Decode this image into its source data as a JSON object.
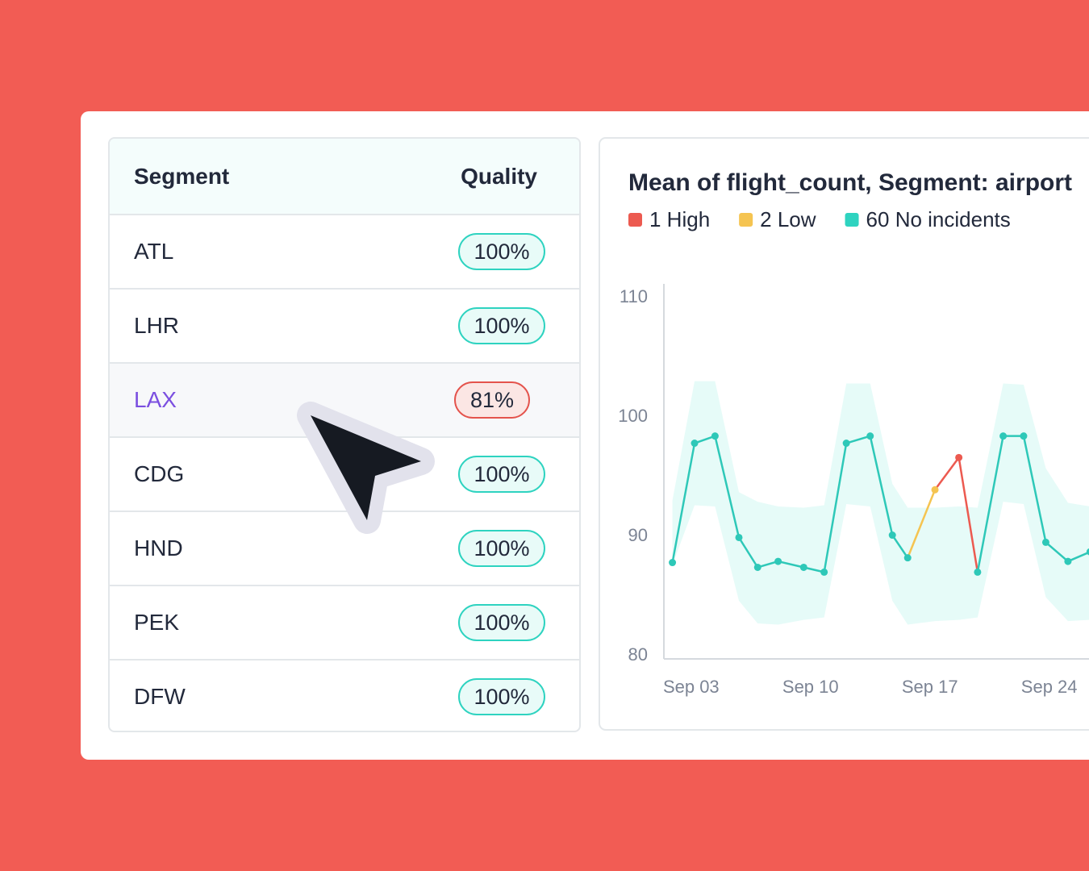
{
  "table": {
    "headers": [
      "Segment",
      "Quality"
    ],
    "rows": [
      [
        "ATL",
        "100%"
      ],
      [
        "LHR",
        "100%"
      ],
      [
        "LAX",
        "81%"
      ],
      [
        "CDG",
        "100%"
      ],
      [
        "HND",
        "100%"
      ],
      [
        "PEK",
        "100%"
      ],
      [
        "DFW",
        "100%"
      ]
    ],
    "selected_row": 2
  },
  "chart_data": {
    "type": "line",
    "title": "Mean of flight_count, Segment: airport",
    "legend": [
      {
        "label": "1 High",
        "color": "#ec5a50"
      },
      {
        "label": "2 Low",
        "color": "#f5c451"
      },
      {
        "label": "60 No incidents",
        "color": "#2ed3c0"
      }
    ],
    "x": [
      1.9,
      3.2,
      4.4,
      5.8,
      6.9,
      8.1,
      9.6,
      10.8,
      12.1,
      13.5,
      14.8,
      15.7,
      17.3,
      18.7,
      19.8,
      21.3,
      22.5,
      23.8,
      25.1,
      26.4
    ],
    "series": [
      {
        "color": "#2ec8b8",
        "values": [
          87.8,
          97.8,
          98.4,
          89.9,
          87.4,
          87.9,
          87.4,
          87.0,
          97.8,
          98.4,
          90.1,
          88.2,
          93.9,
          96.6,
          87.0,
          98.4,
          98.4,
          89.5,
          87.9,
          88.7
        ],
        "point_colors": [
          "#2ec8b8",
          "#2ec8b8",
          "#2ec8b8",
          "#2ec8b8",
          "#2ec8b8",
          "#2ec8b8",
          "#2ec8b8",
          "#2ec8b8",
          "#2ec8b8",
          "#2ec8b8",
          "#2ec8b8",
          "#2ec8b8",
          "#f5c451",
          "#ec5a50",
          "#2ec8b8",
          "#2ec8b8",
          "#2ec8b8",
          "#2ec8b8",
          "#2ec8b8",
          "#2ec8b8"
        ]
      }
    ],
    "band": {
      "color": "#e6fbf8",
      "upper": [
        93.0,
        103.0,
        103.0,
        93.7,
        92.9,
        92.5,
        92.4,
        92.6,
        102.8,
        102.8,
        94.4,
        92.4,
        92.4,
        92.5,
        92.4,
        102.8,
        102.7,
        95.7,
        92.8,
        92.5
      ],
      "lower": [
        87.6,
        92.6,
        92.5,
        84.6,
        82.7,
        82.6,
        83.0,
        83.2,
        92.7,
        92.5,
        84.6,
        82.6,
        82.9,
        83.0,
        83.2,
        92.9,
        92.7,
        84.9,
        82.9,
        83.0
      ]
    },
    "xlim": [
      1.4,
      28.7
    ],
    "xticks": [
      {
        "value": 3,
        "label": "Sep 03"
      },
      {
        "value": 10,
        "label": "Sep 10"
      },
      {
        "value": 17,
        "label": "Sep 17"
      },
      {
        "value": 24,
        "label": "Sep 24"
      }
    ],
    "ylim": [
      80,
      110
    ],
    "yticks": [
      80,
      90,
      100,
      110
    ]
  }
}
